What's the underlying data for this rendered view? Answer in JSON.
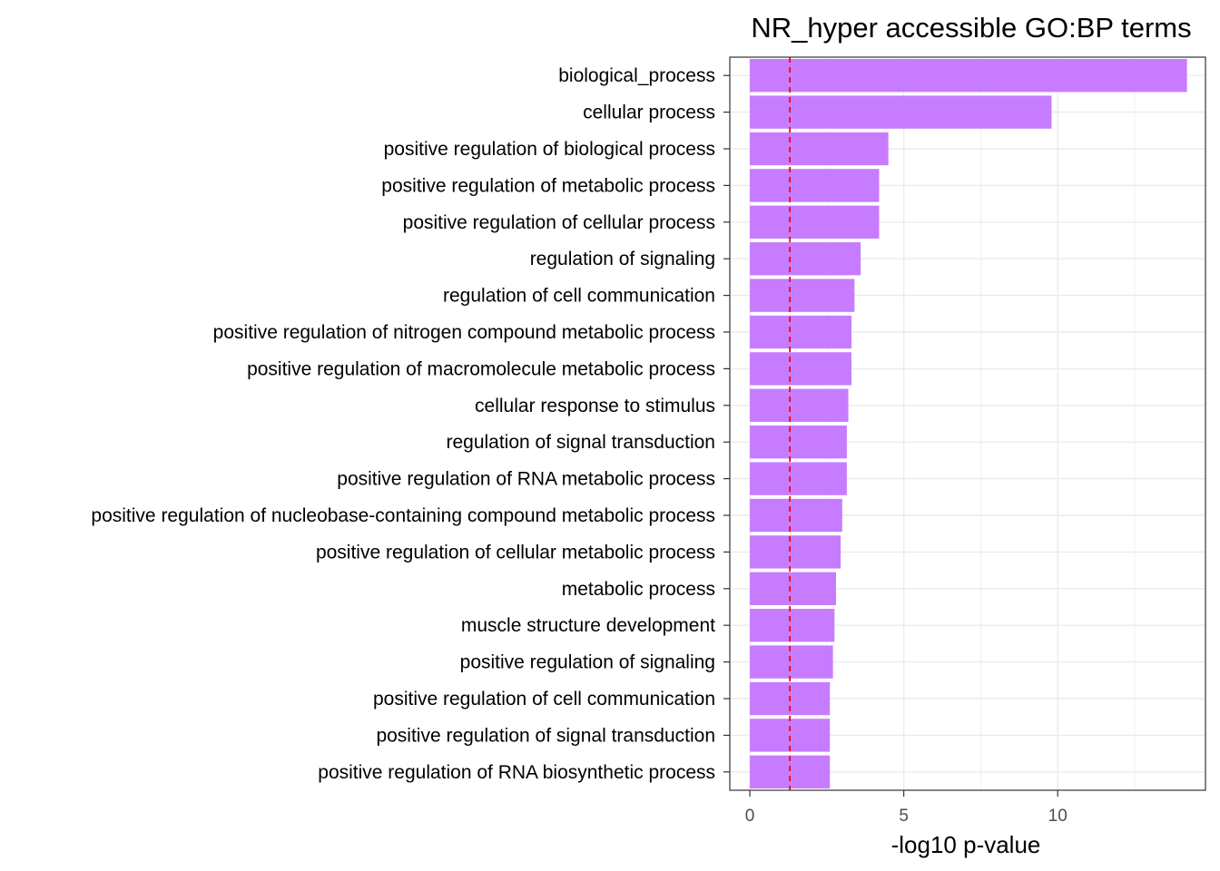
{
  "chart_data": {
    "type": "bar",
    "orientation": "horizontal",
    "title": "NR_hyper accessible GO:BP terms",
    "xlabel": "-log10 p-value",
    "ylabel": "",
    "xlim": [
      0,
      14.8
    ],
    "x_ticks": [
      0,
      5,
      10
    ],
    "grid": true,
    "threshold_line": {
      "value": 1.3,
      "style": "dashed",
      "color": "#ff0000"
    },
    "bar_color": "#c77cff",
    "categories": [
      "biological_process",
      "cellular process",
      "positive regulation of biological process",
      "positive regulation of metabolic process",
      "positive regulation of cellular process",
      "regulation of signaling",
      "regulation of cell communication",
      "positive regulation of nitrogen compound metabolic process",
      "positive regulation of macromolecule metabolic process",
      "cellular response to stimulus",
      "regulation of signal transduction",
      "positive regulation of RNA metabolic process",
      "positive regulation of nucleobase-containing compound metabolic process",
      "positive regulation of cellular metabolic process",
      "metabolic process",
      "muscle structure development",
      "positive regulation of signaling",
      "positive regulation of cell communication",
      "positive regulation of signal transduction",
      "positive regulation of RNA biosynthetic process"
    ],
    "values": [
      14.2,
      9.8,
      4.5,
      4.2,
      4.2,
      3.6,
      3.4,
      3.3,
      3.3,
      3.2,
      3.15,
      3.15,
      3.0,
      2.95,
      2.8,
      2.75,
      2.7,
      2.6,
      2.6,
      2.6
    ]
  }
}
